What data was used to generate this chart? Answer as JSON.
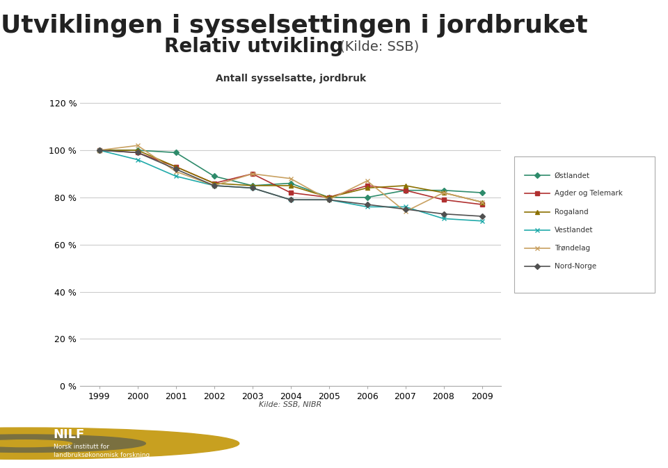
{
  "title_line1": "Utviklingen i sysselsettingen i jordbruket",
  "title_line2": "Relativ utvikling",
  "title_line2_suffix": " (Kilde: SSB)",
  "subtitle": "Antall sysselsatte, jordbruk",
  "xlabel_source": "Kilde: SSB, NIBR",
  "years": [
    1999,
    2000,
    2001,
    2002,
    2003,
    2004,
    2005,
    2006,
    2007,
    2008,
    2009
  ],
  "series": {
    "Østlandet": {
      "values": [
        100,
        100,
        99,
        89,
        85,
        86,
        80,
        80,
        83,
        83,
        82
      ],
      "color": "#2E8B6B",
      "marker": "D",
      "marker_size": 4,
      "linewidth": 1.2
    },
    "Agder og Telemark": {
      "values": [
        100,
        99,
        93,
        86,
        90,
        82,
        80,
        85,
        83,
        79,
        77
      ],
      "color": "#B03030",
      "marker": "s",
      "marker_size": 4,
      "linewidth": 1.2
    },
    "Rogaland": {
      "values": [
        100,
        100,
        93,
        86,
        85,
        85,
        80,
        84,
        85,
        82,
        78
      ],
      "color": "#8B7000",
      "marker": "^",
      "marker_size": 4,
      "linewidth": 1.2
    },
    "Vestlandet": {
      "values": [
        100,
        96,
        89,
        85,
        84,
        79,
        79,
        76,
        76,
        71,
        70
      ],
      "color": "#20AAAA",
      "marker": "x",
      "marker_size": 5,
      "linewidth": 1.2
    },
    "Trøndelag": {
      "values": [
        100,
        102,
        91,
        85,
        90,
        88,
        79,
        87,
        74,
        82,
        78
      ],
      "color": "#C8A060",
      "marker": "x",
      "marker_size": 5,
      "linewidth": 1.2
    },
    "Nord-Norge": {
      "values": [
        100,
        99,
        92,
        85,
        84,
        79,
        79,
        77,
        75,
        73,
        72
      ],
      "color": "#505050",
      "marker": "D",
      "marker_size": 4,
      "linewidth": 1.2
    }
  },
  "yticks": [
    0,
    20,
    40,
    60,
    80,
    100,
    120
  ],
  "ylim": [
    0,
    125
  ],
  "xlim": [
    1998.5,
    2009.5
  ],
  "background_color": "#FFFFFF",
  "plot_bg_color": "#FFFFFF",
  "grid_color": "#CCCCCC",
  "footer_bg_color": "#7A7040",
  "title_fontsize": 26,
  "title2_fontsize": 20,
  "subtitle_fontsize": 10
}
